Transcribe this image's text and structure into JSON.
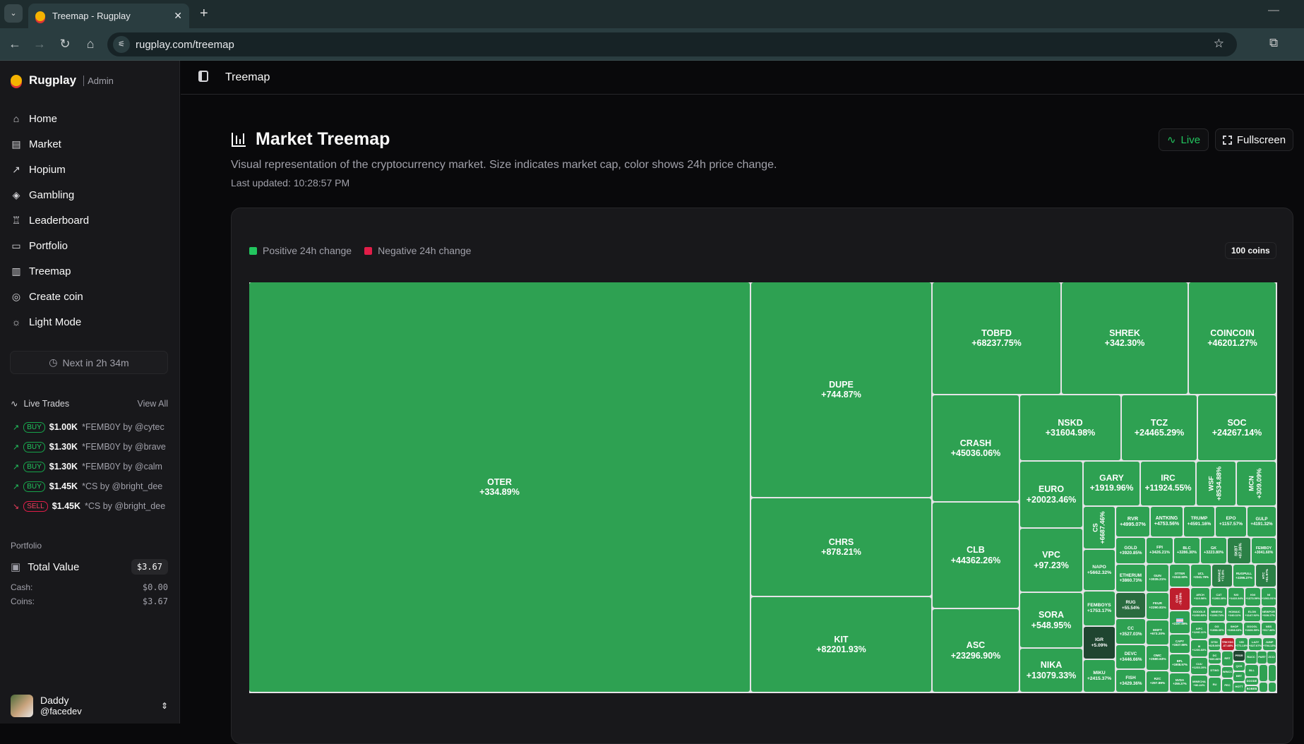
{
  "browser": {
    "tab_title": "Treemap - Rugplay",
    "url": "rugplay.com/treemap"
  },
  "sidebar": {
    "brand": "Rugplay",
    "brand_tag": "Admin",
    "items": [
      {
        "label": "Home",
        "icon": "home-icon"
      },
      {
        "label": "Market",
        "icon": "store-icon"
      },
      {
        "label": "Hopium",
        "icon": "trend-icon"
      },
      {
        "label": "Gambling",
        "icon": "dice-icon"
      },
      {
        "label": "Leaderboard",
        "icon": "trophy-icon"
      },
      {
        "label": "Portfolio",
        "icon": "briefcase-icon"
      },
      {
        "label": "Treemap",
        "icon": "chart-icon"
      },
      {
        "label": "Create coin",
        "icon": "coins-icon"
      },
      {
        "label": "Light Mode",
        "icon": "sun-icon"
      }
    ],
    "next_button": "Next in 2h 34m",
    "live_trades": {
      "title": "Live Trades",
      "view_all": "View All",
      "trades": [
        {
          "type": "BUY",
          "amount": "$1.00K",
          "detail": "*FEMB0Y by @cytec"
        },
        {
          "type": "BUY",
          "amount": "$1.30K",
          "detail": "*FEMB0Y by @brave"
        },
        {
          "type": "BUY",
          "amount": "$1.30K",
          "detail": "*FEMB0Y by @calm"
        },
        {
          "type": "BUY",
          "amount": "$1.45K",
          "detail": "*CS by @bright_dee"
        },
        {
          "type": "SELL",
          "amount": "$1.45K",
          "detail": "*CS by @bright_dee"
        }
      ]
    },
    "portfolio": {
      "title": "Portfolio",
      "total_label": "Total Value",
      "total": "$3.67",
      "cash_label": "Cash:",
      "cash": "$0.00",
      "coins_label": "Coins:",
      "coins": "$3.67"
    },
    "user": {
      "name": "Daddy",
      "handle": "@facedev"
    }
  },
  "header": {
    "title": "Treemap"
  },
  "main": {
    "title": "Market Treemap",
    "description": "Visual representation of the cryptocurrency market. Size indicates market cap, color shows 24h price change.",
    "last_updated": "Last updated: 10:28:57 PM",
    "live_label": "Live",
    "fullscreen_label": "Fullscreen",
    "legend": {
      "positive": "Positive 24h change",
      "negative": "Negative 24h change",
      "positive_color": "#22c55e",
      "negative_color": "#e11d48"
    },
    "coin_count": "100 coins"
  },
  "colors": {
    "positive": "#2ea152",
    "weak_positive": "#2b8046",
    "neutral_positive": "#2a6b3f",
    "near_zero": "#1f4530",
    "negative": "#be1e2d"
  },
  "treemap": {
    "coins": [
      {
        "symbol": "OTER",
        "change": "+334.89%"
      },
      {
        "symbol": "DUPE",
        "change": "+744.87%"
      },
      {
        "symbol": "CHRS",
        "change": "+878.21%"
      },
      {
        "symbol": "KIT",
        "change": "+82201.93%"
      },
      {
        "symbol": "TOBFD",
        "change": "+68237.75%"
      },
      {
        "symbol": "SHREK",
        "change": "+342.30%"
      },
      {
        "symbol": "COINCOIN",
        "change": "+46201.27%"
      },
      {
        "symbol": "CRASH",
        "change": "+45036.06%"
      },
      {
        "symbol": "CLB",
        "change": "+44362.26%"
      },
      {
        "symbol": "ASC",
        "change": "+23296.90%"
      },
      {
        "symbol": "NSKD",
        "change": "+31604.98%"
      },
      {
        "symbol": "TCZ",
        "change": "+24465.29%"
      },
      {
        "symbol": "SOC",
        "change": "+24267.14%"
      },
      {
        "symbol": "EURO",
        "change": "+20023.46%"
      },
      {
        "symbol": "VPC",
        "change": "+97.23%"
      },
      {
        "symbol": "SORA",
        "change": "+548.95%"
      },
      {
        "symbol": "NIKA",
        "change": "+13079.33%"
      },
      {
        "symbol": "GARY",
        "change": "+1919.96%"
      },
      {
        "symbol": "IRC",
        "change": "+11924.55%"
      },
      {
        "symbol": "WSF",
        "change": "+8534.88%"
      },
      {
        "symbol": "MCN",
        "change": "+309.09%"
      },
      {
        "symbol": "CS",
        "change": "+6687.46%"
      },
      {
        "symbol": "NAPO",
        "change": "+5662.32%"
      },
      {
        "symbol": "FEMBOYS",
        "change": "+1753.17%"
      },
      {
        "symbol": "IGR",
        "change": "+5.09%",
        "tone": "near_zero"
      },
      {
        "symbol": "MIKU",
        "change": "+2415.37%"
      },
      {
        "symbol": "RVR",
        "change": "+4995.07%"
      },
      {
        "symbol": "ANTKING",
        "change": "+4753.56%"
      },
      {
        "symbol": "TRUMP",
        "change": "+4591.16%"
      },
      {
        "symbol": "EPO",
        "change": "+1157.57%"
      },
      {
        "symbol": "GULP",
        "change": "+4191.32%"
      },
      {
        "symbol": "GOLD",
        "change": "+3920.85%"
      },
      {
        "symbol": "FPI",
        "change": "+3426.21%"
      },
      {
        "symbol": "BLC",
        "change": "+3286.30%"
      },
      {
        "symbol": "GK",
        "change": "+3223.80%"
      },
      {
        "symbol": "SKBT",
        "change": "+87.36%",
        "tone": "weak_positive"
      },
      {
        "symbol": "FEMBOY",
        "change": "+3041.60%"
      },
      {
        "symbol": "ETHERUM",
        "change": "+3860.73%"
      },
      {
        "symbol": "GUN",
        "change": "+3035.21%"
      },
      {
        "symbol": "OTTER",
        "change": "+2342.60%"
      },
      {
        "symbol": "UCL",
        "change": "+2341.76%"
      },
      {
        "symbol": "MONKE",
        "change": "+72.0%",
        "tone": "weak_positive"
      },
      {
        "symbol": "RUGPULL",
        "change": "+2296.27%"
      },
      {
        "symbol": "HTC",
        "change": "+81.97%",
        "tone": "weak_positive"
      },
      {
        "symbol": "RUG",
        "change": "+55.54%",
        "tone": "neutral_positive"
      },
      {
        "symbol": "FEUR",
        "change": "+2290.81%"
      },
      {
        "symbol": "CC",
        "change": "+3527.03%"
      },
      {
        "symbol": "MSFT",
        "change": "+673.20%"
      },
      {
        "symbol": "DEVC",
        "change": "+3446.66%"
      },
      {
        "symbol": "OMC",
        "change": "+2580.63%"
      },
      {
        "symbol": "FISH",
        "change": "+3429.36%"
      },
      {
        "symbol": "RZC",
        "change": "+297.89%"
      },
      {
        "symbol": "CUM",
        "change": "-78.58%",
        "tone": "negative"
      },
      {
        "symbol": "",
        "icon": "trans-flag-icon",
        "change": "+2197.69%"
      },
      {
        "symbol": "CAPY",
        "change": "+1927.86%"
      },
      {
        "symbol": "BPL",
        "change": "+1908.97%"
      },
      {
        "symbol": "NVDA",
        "change": "+259.37%"
      },
      {
        "symbol": "ARCH",
        "change": "+110.58%"
      },
      {
        "symbol": "CAT",
        "change": "+1283.39%"
      },
      {
        "symbol": "NXI",
        "change": "+1422.34%"
      },
      {
        "symbol": "KNI",
        "change": "+1373.59%"
      },
      {
        "symbol": "NI",
        "change": "+1361.51%"
      },
      {
        "symbol": "GOOGLE",
        "change": "+1230.83%"
      },
      {
        "symbol": "MINEHU",
        "change": "+1193.74%"
      },
      {
        "symbol": "HOMAIC",
        "change": "+240.11%"
      },
      {
        "symbol": "ELON",
        "change": "+1147.92%"
      },
      {
        "symbol": "NEWPOR",
        "change": "+328.17%"
      },
      {
        "symbol": "AIPC",
        "change": "+1240.11%"
      },
      {
        "symbol": "GG",
        "change": "+1058.30%"
      },
      {
        "symbol": "SHOP",
        "change": "+1008.63%"
      },
      {
        "symbol": "GOOGL",
        "change": "+1026.59%"
      },
      {
        "symbol": "NSS",
        "change": "+917.38%"
      },
      {
        "symbol": "III",
        "change": "+1236.83%"
      },
      {
        "symbol": "DTDI",
        "change": "+825.06%"
      },
      {
        "symbol": "TRKYDC",
        "change": "-67.48%",
        "tone": "negative"
      },
      {
        "symbol": "VIG",
        "change": "+771.19%"
      },
      {
        "symbol": "LAZY",
        "change": "+327.07%"
      },
      {
        "symbol": "JUMP",
        "change": "+794.13%"
      },
      {
        "symbol": "CUU",
        "change": "+1233.20%"
      },
      {
        "symbol": "MINECHA",
        "change": "+80.44%"
      },
      {
        "symbol": "DC",
        "change": "+600.86%"
      },
      {
        "symbol": "RRT",
        "change": ""
      },
      {
        "symbol": "PRSR",
        "change": "",
        "tone": "near_zero"
      },
      {
        "symbol": "RACC",
        "change": ""
      },
      {
        "symbol": "PART",
        "change": ""
      },
      {
        "symbol": "ZCCI",
        "change": ""
      },
      {
        "symbol": "DTWO",
        "change": ""
      },
      {
        "symbol": "WINCC",
        "change": ""
      },
      {
        "symbol": "QCH",
        "change": ""
      },
      {
        "symbol": "BLL",
        "change": ""
      },
      {
        "symbol": "RU",
        "change": ""
      },
      {
        "symbol": "PEC",
        "change": ""
      },
      {
        "symbol": "BRT",
        "change": ""
      },
      {
        "symbol": "DOODE",
        "change": ""
      },
      {
        "symbol": "HOTT",
        "change": ""
      },
      {
        "symbol": "BOBEB",
        "change": ""
      },
      {
        "symbol": "",
        "change": ""
      },
      {
        "symbol": "",
        "change": ""
      },
      {
        "symbol": "",
        "change": ""
      },
      {
        "symbol": "",
        "change": ""
      }
    ]
  }
}
